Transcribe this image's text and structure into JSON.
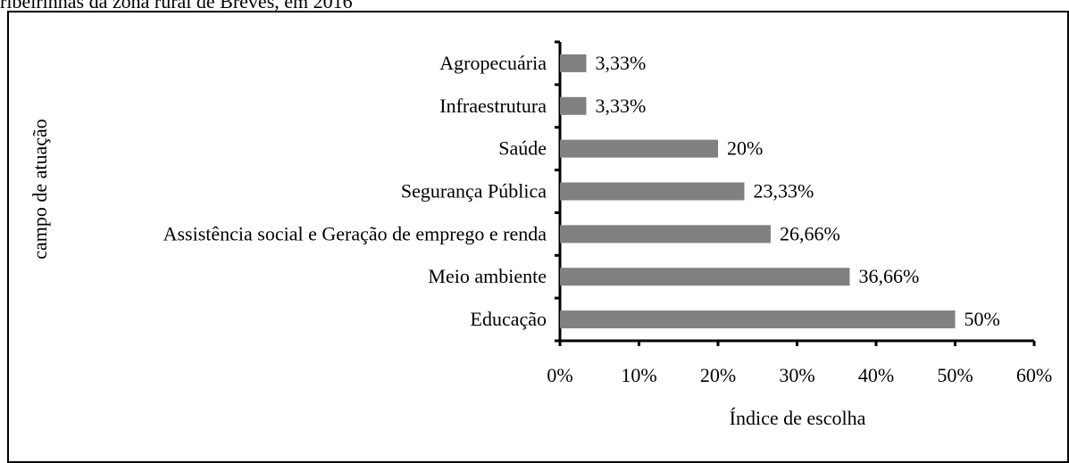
{
  "chart_data": {
    "type": "barh",
    "title": "ribeirinhas da zona rural de Breves, em 2016",
    "categories": [
      "Agropecuária",
      "Infraestrutura",
      "Saúde",
      "Segurança Pública",
      "Assistência social e Geração de emprego e renda",
      "Meio ambiente",
      "Educação"
    ],
    "values": [
      3.33,
      3.33,
      20,
      23.33,
      26.66,
      36.66,
      50
    ],
    "value_labels": [
      "3,33%",
      "3,33%",
      "20%",
      "23,33%",
      "26,66%",
      "36,66%",
      "50%"
    ],
    "color": "#808080",
    "xlim": [
      0,
      60
    ],
    "xticks": [
      {
        "value": 0,
        "label": "0%"
      },
      {
        "value": 10,
        "label": "10%"
      },
      {
        "value": 20,
        "label": "20%"
      },
      {
        "value": 30,
        "label": "30%"
      },
      {
        "value": 40,
        "label": "40%"
      },
      {
        "value": 50,
        "label": "50%"
      },
      {
        "value": 60,
        "label": "60%"
      }
    ],
    "xlabel": "Índice de escolha",
    "ylabel": "campo de atuação"
  }
}
